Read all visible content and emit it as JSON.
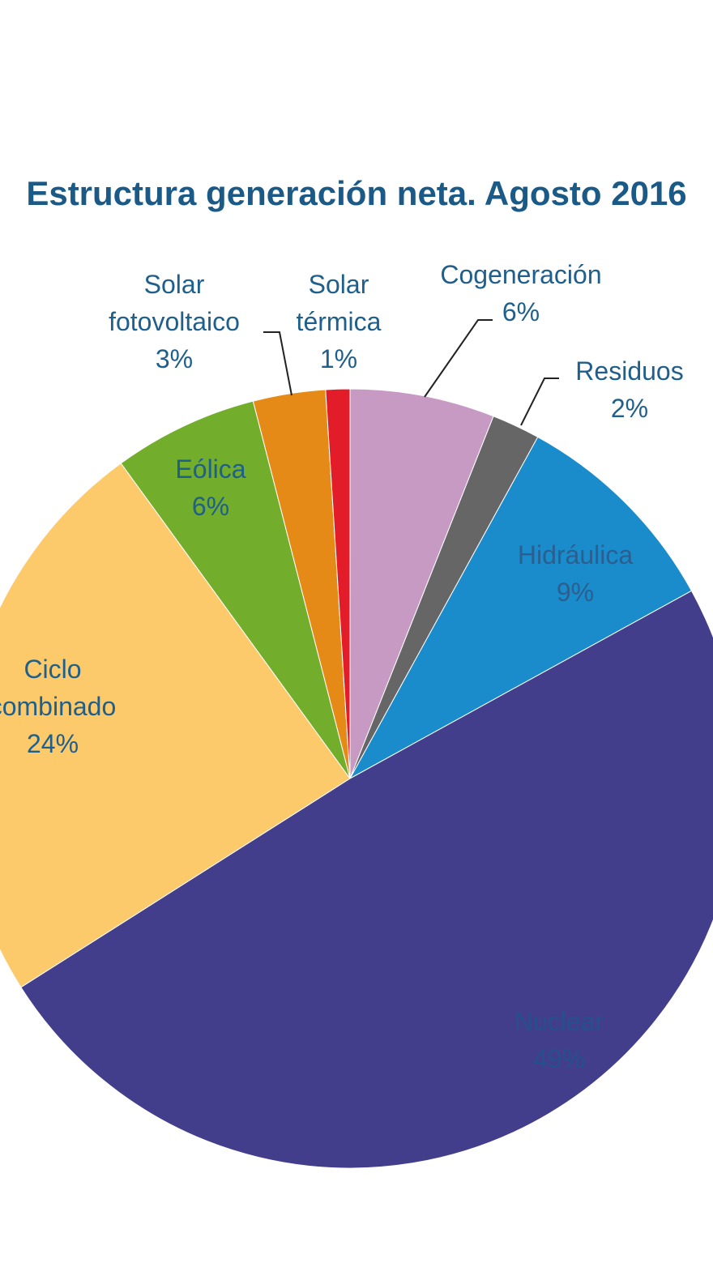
{
  "chart_data": {
    "type": "pie",
    "title": "Estructura generación neta. Agosto 2016",
    "categories": [
      "Cogeneración",
      "Residuos",
      "Hidráulica",
      "Nuclear",
      "Ciclo combinado",
      "Eólica",
      "Solar fotovoltaico",
      "Solar térmica"
    ],
    "values": [
      6,
      2,
      9,
      49,
      24,
      6,
      3,
      1
    ],
    "value_labels": [
      "6%",
      "2%",
      "9%",
      "49%",
      "24%",
      "6%",
      "3%",
      "1%"
    ],
    "colors": [
      "#c79ac4",
      "#666666",
      "#1a8ccc",
      "#433e8b",
      "#fcc96b",
      "#72ad2b",
      "#e58a17",
      "#e31c2a"
    ]
  }
}
